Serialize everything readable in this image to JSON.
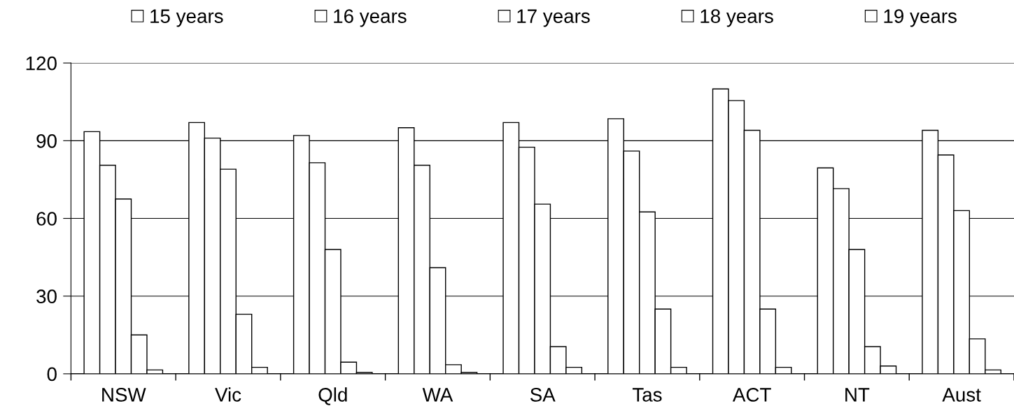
{
  "chart_data": {
    "type": "bar",
    "categories": [
      "NSW",
      "Vic",
      "Qld",
      "WA",
      "SA",
      "Tas",
      "ACT",
      "NT",
      "Aust"
    ],
    "series": [
      {
        "name": "15 years",
        "color": "#ffffff",
        "values": [
          93.5,
          97,
          92,
          95,
          97,
          98.5,
          110,
          79.5,
          94
        ]
      },
      {
        "name": "16 years",
        "color": "#ffffff",
        "values": [
          80.5,
          91,
          81.5,
          80.5,
          87.5,
          86,
          105.5,
          71.5,
          84.5
        ]
      },
      {
        "name": "17 years",
        "color": "#ffffff",
        "values": [
          67.5,
          79,
          48,
          41,
          65.5,
          62.5,
          94,
          48,
          63
        ]
      },
      {
        "name": "18 years",
        "color": "#ffffff",
        "values": [
          15,
          23,
          4.5,
          3.5,
          10.5,
          25,
          25,
          10.5,
          13.5
        ]
      },
      {
        "name": "19 years",
        "color": "#ffffff",
        "values": [
          1.5,
          2.5,
          0.5,
          0.5,
          2.5,
          2.5,
          2.5,
          3,
          1.5
        ]
      }
    ],
    "ylim": [
      0,
      120
    ],
    "yticks": [
      0,
      30,
      60,
      90,
      120
    ],
    "grid": "y",
    "legend": "top"
  }
}
